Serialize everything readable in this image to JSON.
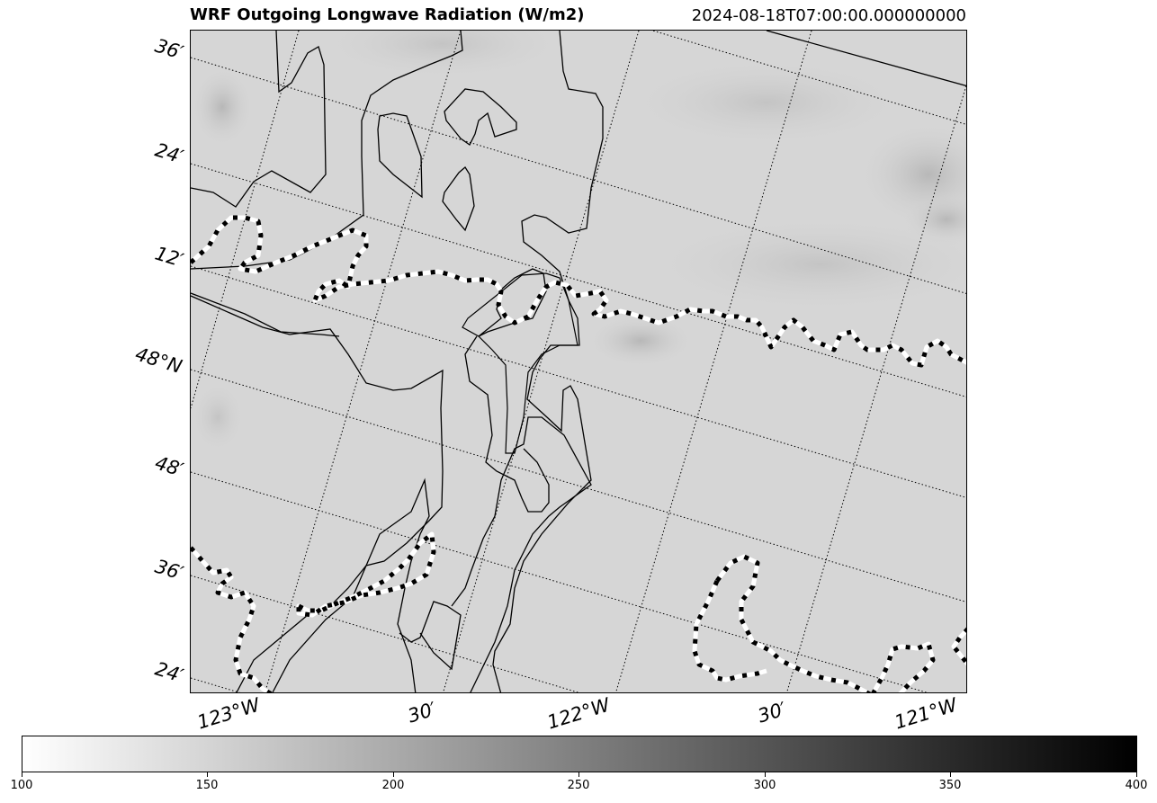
{
  "header": {
    "title": "WRF Outgoing Longwave Radiation (W/m2)",
    "timestamp": "2024-08-18T07:00:00.000000000"
  },
  "map": {
    "lat_labels": [
      "36′",
      "24′",
      "12′",
      "48°N",
      "48′",
      "36′",
      "24′"
    ],
    "lon_labels": [
      "123°W",
      "30′",
      "122°W",
      "30′",
      "121°W"
    ],
    "field": "Outgoing Longwave Radiation",
    "colormap": "Greys",
    "background_color": "#d6d6d6"
  },
  "colorbar": {
    "min": 100,
    "max": 400,
    "tick_labels": [
      "100",
      "150",
      "200",
      "250",
      "300",
      "350",
      "400"
    ]
  }
}
